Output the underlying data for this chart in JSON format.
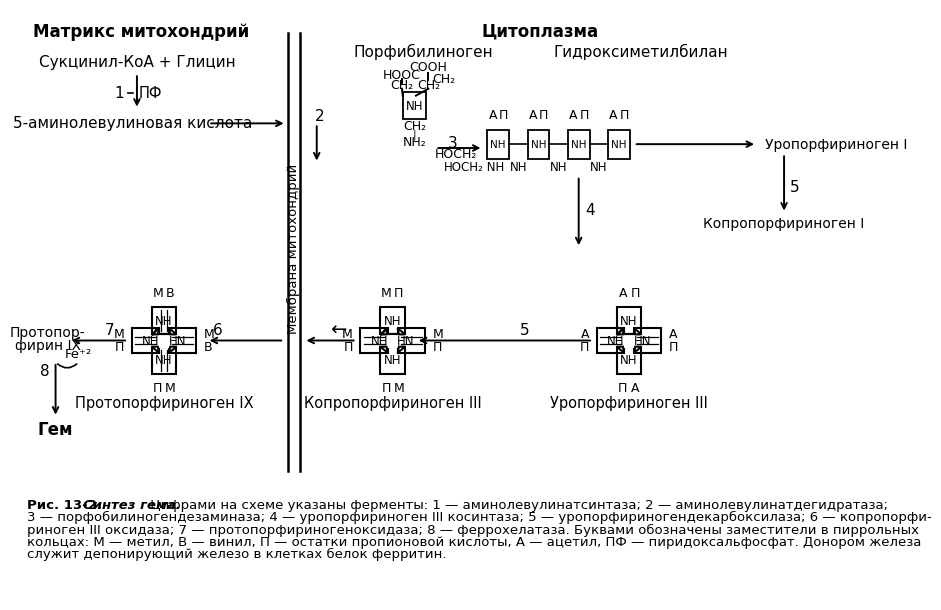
{
  "bg_color": "#ffffff",
  "mitochondria_label": "Матрикс митохондрий",
  "cytoplasm_label": "Цитоплазма",
  "membrane_label": "Мембрана митохондрий",
  "compound1": "Сукцинил-КоА + Глицин",
  "compound2": "5-аминолевулиновая кислота",
  "compound3": "Порфибилиноген",
  "compound4": "Гидроксиметилбилан",
  "compound5r": "Уропорфириноген I",
  "compound6r": "Копропорфириноген I",
  "compound7": "Уропорфириноген III",
  "compound8": "Копропорфириноген III",
  "compound9": "Протопорфириноген IX",
  "compound10a": "Протопор-",
  "compound10b": "фирин IX",
  "compound11": "Гем",
  "caption_label1": "Рис. 13-2. ",
  "caption_label2": "Синтез гема.",
  "caption_line1": " Цифрами на схеме указаны ферменты: 1 — аминолевулинатсинтаза; 2 — аминолевулинатдегидратаза;",
  "caption_line2": "3 — порфобилиногендезаминаза; 4 — уропорфириноген III косинтаза; 5 — уропорфириногендекарбоксилаза; 6 — копропорфи-",
  "caption_line3": "риноген III оксидаза; 7 — протопорфириногеноксидаза; 8 — феррохелатаза. Буквами обозначены заместители в пиррольных",
  "caption_line4": "кольцах: М — метил, В — винил, П — остатки пропионовой кислоты, А — ацетил, ПФ — пиридоксальфосфат. Донором железа",
  "caption_line5": "служит депонирующий железо в клетках белок ферритин."
}
